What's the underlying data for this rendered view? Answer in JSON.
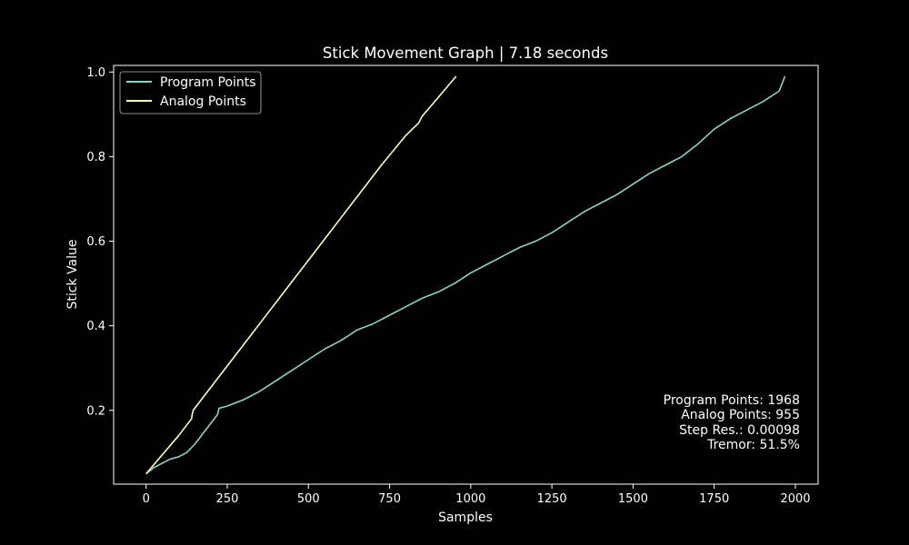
{
  "chart_data": {
    "type": "line",
    "title": "Stick Movement Graph | 7.18 seconds",
    "xlabel": "Samples",
    "ylabel": "Stick Value",
    "xlim": [
      -100,
      2070
    ],
    "ylim": [
      0.0255,
      1.0157
    ],
    "x_ticks": [
      0,
      250,
      500,
      750,
      1000,
      1250,
      1500,
      1750,
      2000
    ],
    "x_tick_labels": [
      "0",
      "250",
      "500",
      "750",
      "1000",
      "1250",
      "1500",
      "1750",
      "2000"
    ],
    "y_ticks": [
      0.2,
      0.4,
      0.6,
      0.8,
      1.0
    ],
    "y_tick_labels": [
      "0.2",
      "0.4",
      "0.6",
      "0.8",
      "1.0"
    ],
    "grid": false,
    "legend_position": "top-left",
    "series": [
      {
        "name": "Program Points",
        "color": "#8dd3c7",
        "x": [
          0,
          25,
          50,
          75,
          100,
          125,
          150,
          175,
          200,
          220,
          225,
          250,
          300,
          350,
          400,
          450,
          500,
          550,
          600,
          650,
          700,
          750,
          800,
          850,
          900,
          950,
          1000,
          1050,
          1100,
          1150,
          1200,
          1250,
          1300,
          1350,
          1400,
          1450,
          1500,
          1550,
          1600,
          1650,
          1700,
          1750,
          1800,
          1850,
          1900,
          1950,
          1968
        ],
        "y": [
          0.05,
          0.065,
          0.075,
          0.085,
          0.09,
          0.1,
          0.12,
          0.145,
          0.17,
          0.19,
          0.205,
          0.21,
          0.225,
          0.245,
          0.27,
          0.295,
          0.32,
          0.345,
          0.365,
          0.39,
          0.405,
          0.425,
          0.445,
          0.465,
          0.48,
          0.5,
          0.525,
          0.545,
          0.565,
          0.585,
          0.6,
          0.62,
          0.645,
          0.67,
          0.69,
          0.71,
          0.735,
          0.76,
          0.78,
          0.8,
          0.83,
          0.865,
          0.89,
          0.91,
          0.93,
          0.955,
          0.99
        ]
      },
      {
        "name": "Analog Points",
        "color": "#ffffb3",
        "x": [
          0,
          50,
          100,
          140,
          142,
          145,
          175,
          250,
          325,
          375,
          425,
          500,
          575,
          650,
          725,
          800,
          840,
          850,
          900,
          955
        ],
        "y": [
          0.05,
          0.095,
          0.14,
          0.18,
          0.19,
          0.2,
          0.23,
          0.305,
          0.38,
          0.43,
          0.48,
          0.555,
          0.63,
          0.705,
          0.78,
          0.85,
          0.88,
          0.895,
          0.94,
          0.99
        ]
      }
    ],
    "annotations": [
      "Program Points: 1968",
      "Analog Points: 955",
      "Step Res.: 0.00098",
      "Tremor: 51.5%"
    ]
  }
}
